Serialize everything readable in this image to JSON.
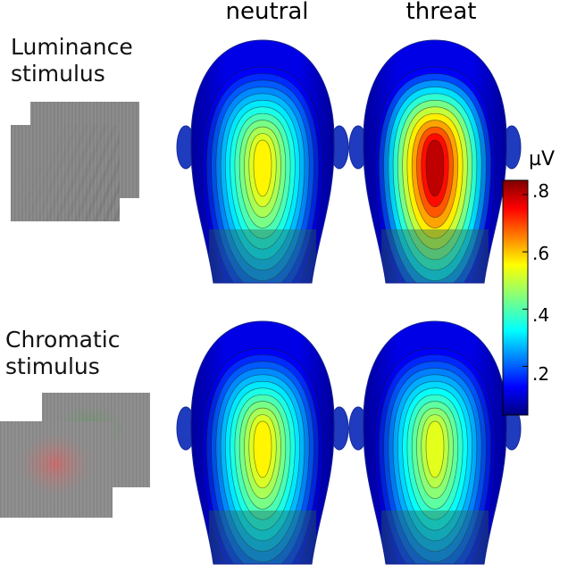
{
  "columns": [
    "neutral",
    "threat"
  ],
  "rows": [
    {
      "label_line1": "Luminance",
      "label_line2": "stimulus"
    },
    {
      "label_line1": "Chromatic",
      "label_line2": "stimulus"
    }
  ],
  "colorbar": {
    "unit": "µV",
    "ticks": [
      ".8",
      ".6",
      ".4",
      ".2"
    ],
    "tick_values": [
      0.8,
      0.6,
      0.4,
      0.2
    ],
    "range": [
      0.03,
      0.85
    ]
  },
  "maps": [
    {
      "row": "Luminance",
      "column": "neutral",
      "peak_uV": 0.55
    },
    {
      "row": "Luminance",
      "column": "threat",
      "peak_uV": 0.8
    },
    {
      "row": "Chromatic",
      "column": "neutral",
      "peak_uV": 0.55
    },
    {
      "row": "Chromatic",
      "column": "threat",
      "peak_uV": 0.52
    }
  ],
  "colors": {
    "low": "#00007f",
    "high": "#a00000"
  }
}
